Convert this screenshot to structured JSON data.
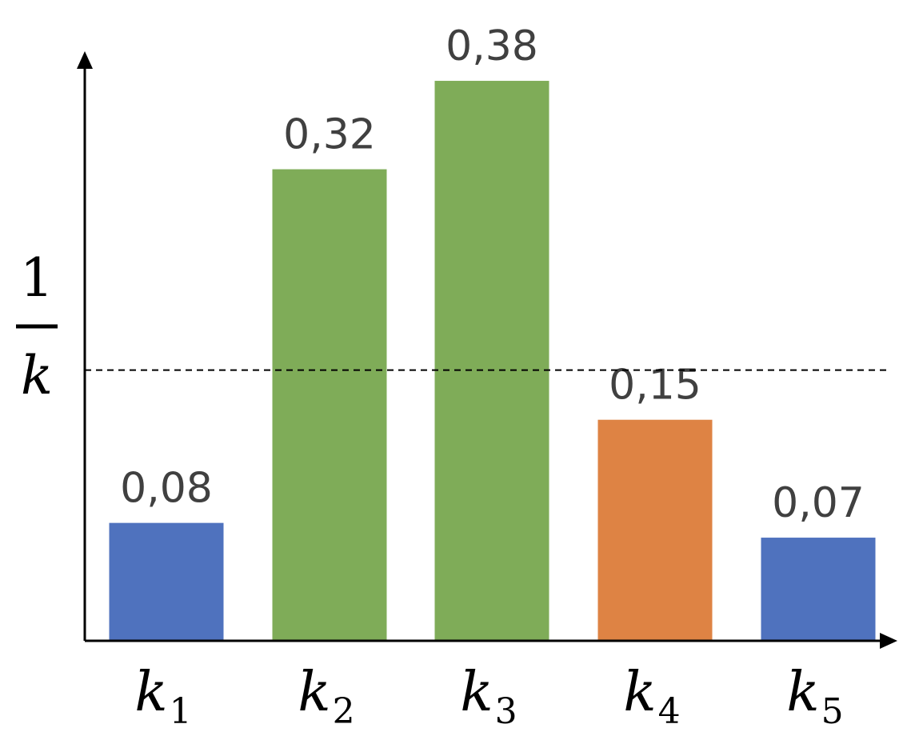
{
  "chart_data": {
    "type": "bar",
    "categories": [
      "k",
      "k",
      "k",
      "k",
      "k"
    ],
    "category_subscripts": [
      "1",
      "2",
      "3",
      "4",
      "5"
    ],
    "values": [
      0.08,
      0.32,
      0.38,
      0.15,
      0.07
    ],
    "value_labels": [
      "0,08",
      "0,32",
      "0,38",
      "0,15",
      "0,07"
    ],
    "bar_colors": [
      "#4F72BE",
      "#7FAC58",
      "#7FAC58",
      "#DE8344",
      "#4F72BE"
    ],
    "reference_line": {
      "value": 0.2,
      "style": "dashed",
      "label_numerator": "1",
      "label_denominator": "k"
    },
    "ylim": [
      0,
      0.4
    ],
    "grid": false,
    "legend": "none",
    "title": "",
    "xlabel": "",
    "ylabel": ""
  }
}
